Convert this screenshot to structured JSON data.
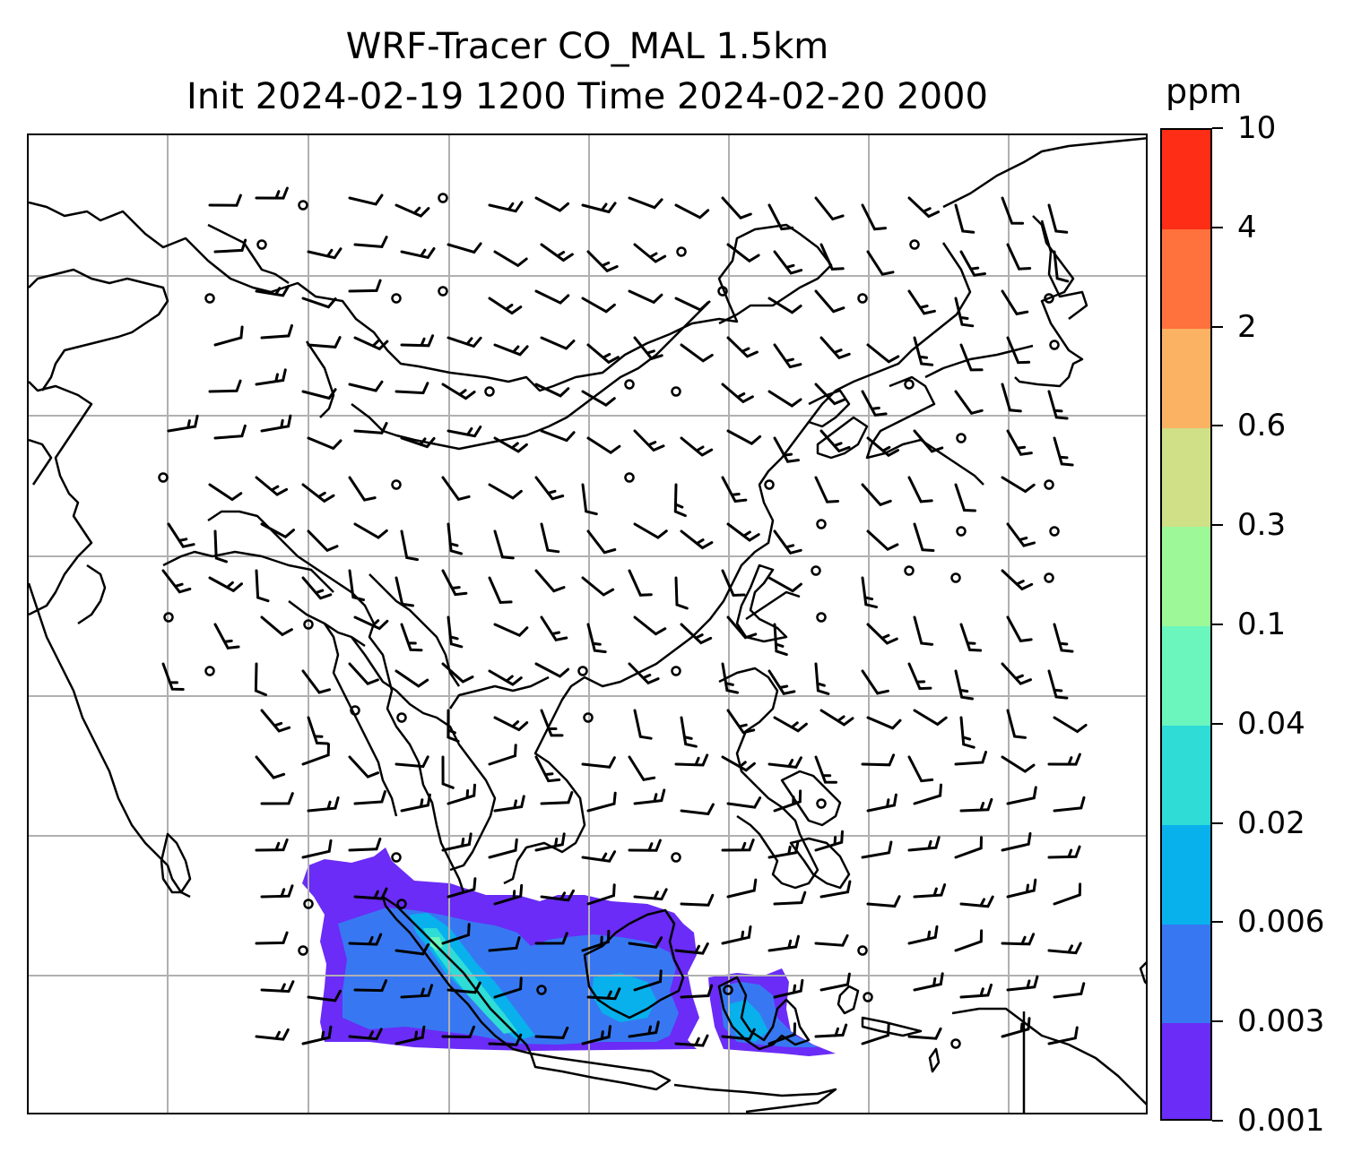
{
  "title": {
    "line1": "WRF-Tracer CO_MAL 1.5km",
    "line2": "Init 2024-02-19 1200 Time 2024-02-20 2000"
  },
  "colorbar": {
    "unit_label": "ppm",
    "levels": [
      "0.001",
      "0.003",
      "0.006",
      "0.02",
      "0.04",
      "0.1",
      "0.3",
      "0.6",
      "2",
      "4",
      "10"
    ],
    "colors": [
      "#6a2cf6",
      "#3778f2",
      "#08b1ec",
      "#2fdcd6",
      "#6af6bd",
      "#9df897",
      "#cfe086",
      "#fcb263",
      "#ff713d",
      "#fe2d16"
    ]
  },
  "map": {
    "projection_gridlines": true,
    "wind_barbs": true,
    "fill_colors": {
      "level1": "#6a2cf6",
      "level2": "#3778f2",
      "level3": "#08b1ec",
      "level4": "#2fdcd6",
      "level5": "#6af6bd"
    },
    "coastline_color": "#000000",
    "grid_color": "#b0b0b0"
  }
}
